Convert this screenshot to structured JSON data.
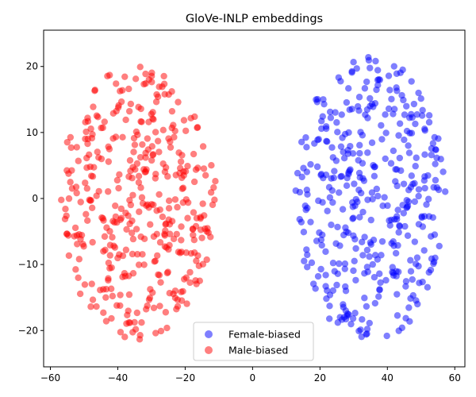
{
  "chart_data": {
    "type": "scatter",
    "title": "GloVe-INLP embeddings",
    "xlabel": "",
    "ylabel": "",
    "xlim": [
      -62,
      63
    ],
    "ylim": [
      -25.5,
      25.5
    ],
    "xticks": [
      -60,
      -40,
      -20,
      0,
      20,
      40,
      60
    ],
    "yticks": [
      -20,
      -10,
      0,
      10,
      20
    ],
    "grid": false,
    "legend": {
      "position": "bottom-center"
    },
    "series": [
      {
        "name": "Female-biased",
        "color": "#0000ff",
        "alpha": 0.5,
        "cluster": {
          "cx": 35,
          "cy": 0,
          "rx": 23,
          "ry": 22.5,
          "count": 400,
          "seed": 7
        }
      },
      {
        "name": "Male-biased",
        "color": "#ff0000",
        "alpha": 0.5,
        "cluster": {
          "cx": -34,
          "cy": -0.5,
          "rx": 24,
          "ry": 21.5,
          "count": 400,
          "seed": 13
        }
      }
    ]
  }
}
